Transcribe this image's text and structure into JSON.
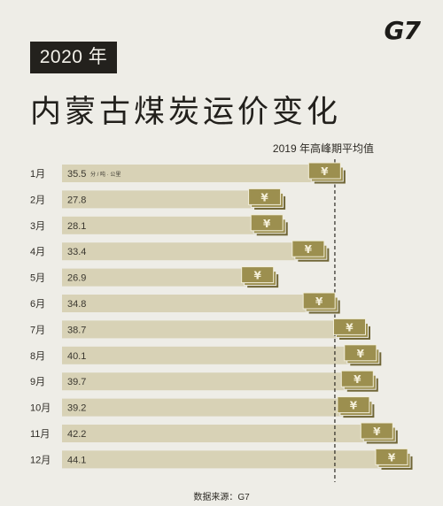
{
  "header": {
    "year_badge": "2020 年",
    "logo": "G7",
    "title": "内蒙古煤炭运价变化"
  },
  "source_note": "数据来源：G7",
  "colors": {
    "background": "#eeede7",
    "bar": "#d8d2b6",
    "money_icon": "#9c8f4f",
    "money_icon_dark": "#6f6535",
    "badge_bg": "#23211d"
  },
  "icon": "yen-banknote-stack-icon",
  "chart_data": {
    "type": "bar",
    "orientation": "horizontal",
    "categories": [
      "1月",
      "2月",
      "3月",
      "4月",
      "5月",
      "6月",
      "7月",
      "8月",
      "9月",
      "10月",
      "11月",
      "12月"
    ],
    "values": [
      35.5,
      27.8,
      28.1,
      33.4,
      26.9,
      34.8,
      38.7,
      40.1,
      39.7,
      39.2,
      42.2,
      44.1
    ],
    "value_labels": [
      "35.5",
      "27.8",
      "28.1",
      "33.4",
      "26.9",
      "34.8",
      "38.7",
      "40.1",
      "39.7",
      "39.2",
      "42.2",
      "44.1"
    ],
    "unit": "分 / 吨 · 公里",
    "reference_line": {
      "value": 35.0,
      "label": "2019 年高峰期平均值",
      "style": "dashed"
    },
    "xlim": [
      0,
      44.1
    ],
    "grid": false,
    "legend": "none"
  }
}
